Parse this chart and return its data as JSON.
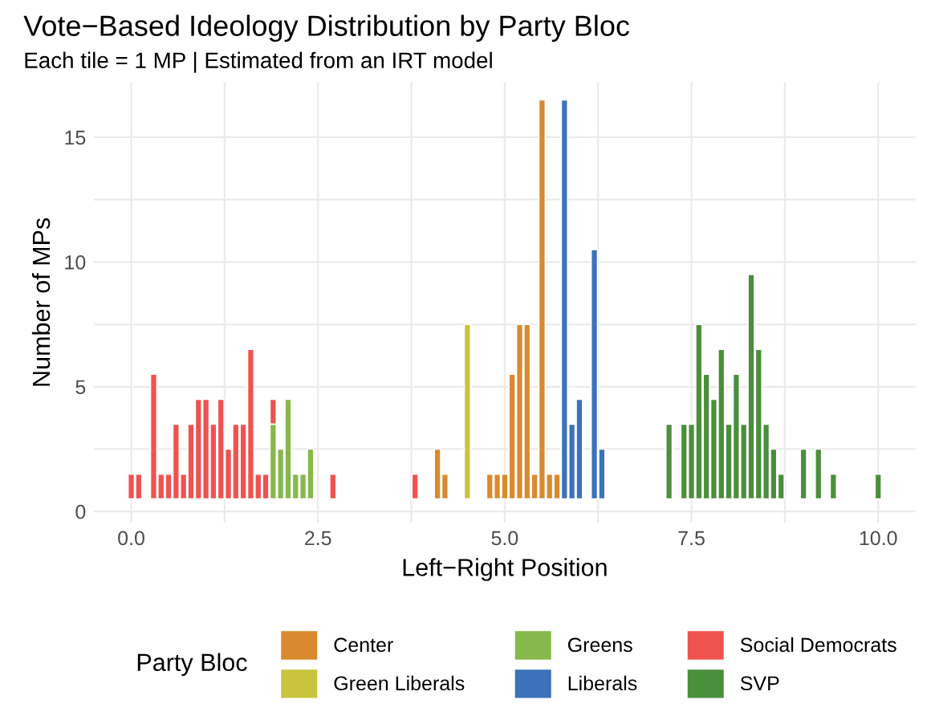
{
  "chart_data": {
    "type": "bar",
    "title": "Vote−Based Ideology Distribution by Party Bloc",
    "subtitle": "Each tile = 1 MP | Estimated from an IRT model",
    "xlabel": "Left−Right Position",
    "ylabel": "Number of MPs",
    "legend_title": "Party Bloc",
    "legend": "bottom",
    "grid": true,
    "xlim": [
      -0.5,
      10.5
    ],
    "ylim": [
      -0.45,
      17.2
    ],
    "xticks": [
      {
        "value": 0.0,
        "label": "0.0"
      },
      {
        "value": 1.25,
        "label": null
      },
      {
        "value": 2.5,
        "label": "2.5"
      },
      {
        "value": 3.75,
        "label": null
      },
      {
        "value": 5.0,
        "label": "5.0"
      },
      {
        "value": 6.25,
        "label": null
      },
      {
        "value": 7.5,
        "label": "7.5"
      },
      {
        "value": 8.75,
        "label": null
      },
      {
        "value": 10.0,
        "label": "10.0"
      }
    ],
    "yticks": [
      0,
      {
        "value": 2.5,
        "label": null
      },
      5,
      {
        "value": 7.5,
        "label": null
      },
      10,
      {
        "value": 12.5,
        "label": null
      },
      15
    ],
    "series": [
      {
        "name": "Center",
        "color": "#d98a2e",
        "x": [
          4.1,
          4.2,
          4.8,
          4.9,
          5.0,
          5.1,
          5.2,
          5.3,
          5.4,
          5.5,
          5.6,
          5.7
        ],
        "values": [
          2,
          1,
          1,
          1,
          1,
          5,
          7,
          7,
          1,
          16,
          1,
          1
        ],
        "base": [
          0.5,
          0.5,
          0.5,
          0.5,
          0.5,
          0.5,
          0.5,
          0.5,
          0.5,
          0.5,
          0.5,
          0.5
        ]
      },
      {
        "name": "Green Liberals",
        "color": "#c9c43c",
        "x": [
          4.5
        ],
        "values": [
          7
        ],
        "base": [
          0.5
        ]
      },
      {
        "name": "Greens",
        "color": "#86b84b",
        "x": [
          1.9,
          2.0,
          2.1,
          2.2,
          2.3,
          2.4
        ],
        "values": [
          3,
          2,
          4,
          1,
          1,
          2
        ],
        "base": [
          0.5,
          0.5,
          0.5,
          0.5,
          0.5,
          0.5
        ]
      },
      {
        "name": "Liberals",
        "color": "#3b72b9",
        "x": [
          5.8,
          5.9,
          6.0,
          6.2,
          6.3
        ],
        "values": [
          16,
          3,
          4,
          10,
          2
        ],
        "base": [
          0.5,
          0.5,
          0.5,
          0.5,
          0.5
        ]
      },
      {
        "name": "Social Democrats",
        "color": "#ee5350",
        "x": [
          0.0,
          0.1,
          0.3,
          0.4,
          0.5,
          0.6,
          0.7,
          0.8,
          0.9,
          1.0,
          1.1,
          1.2,
          1.3,
          1.4,
          1.5,
          1.6,
          1.7,
          1.8,
          1.9,
          2.7,
          3.8
        ],
        "values": [
          1,
          1,
          5,
          1,
          1,
          3,
          1,
          3,
          4,
          4,
          3,
          4,
          2,
          3,
          3,
          6,
          1,
          1,
          1,
          1,
          1
        ],
        "base": [
          0.5,
          0.5,
          0.5,
          0.5,
          0.5,
          0.5,
          0.5,
          0.5,
          0.5,
          0.5,
          0.5,
          0.5,
          0.5,
          0.5,
          0.5,
          0.5,
          0.5,
          0.5,
          3.5,
          0.5,
          0.5
        ]
      },
      {
        "name": "SVP",
        "color": "#4b8e3c",
        "x": [
          7.2,
          7.4,
          7.5,
          7.6,
          7.7,
          7.8,
          7.9,
          8.0,
          8.1,
          8.2,
          8.3,
          8.4,
          8.5,
          8.6,
          8.7,
          9.0,
          9.2,
          9.4,
          10.0
        ],
        "values": [
          3,
          3,
          3,
          7,
          5,
          4,
          6,
          3,
          5,
          3,
          9,
          6,
          3,
          2,
          1,
          2,
          2,
          1,
          1
        ],
        "base": [
          0.5,
          0.5,
          0.5,
          0.5,
          0.5,
          0.5,
          0.5,
          0.5,
          0.5,
          0.5,
          0.5,
          0.5,
          0.5,
          0.5,
          0.5,
          0.5,
          0.5,
          0.5,
          0.5
        ]
      }
    ]
  }
}
